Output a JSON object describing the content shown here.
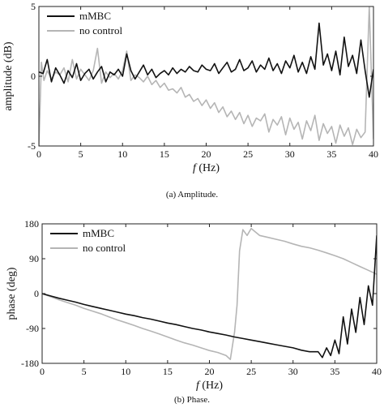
{
  "chart_data": [
    {
      "type": "line",
      "caption": "(a) Amplitude.",
      "xlabel_var": "f",
      "xlabel_unit": "(Hz)",
      "ylabel": "amplitude (dB)",
      "xlim": [
        0,
        40
      ],
      "ylim": [
        -5,
        5
      ],
      "xticks": [
        0,
        5,
        10,
        15,
        20,
        25,
        30,
        35,
        40
      ],
      "yticks": [
        -5,
        0,
        5
      ],
      "grid": false,
      "legend": "top-left",
      "series": [
        {
          "name": "mMBC",
          "color": "#111111",
          "x": [
            0,
            0.5,
            1,
            1.5,
            2,
            2.5,
            3,
            3.5,
            4,
            4.5,
            5,
            5.5,
            6,
            6.5,
            7,
            7.5,
            8,
            8.5,
            9,
            9.5,
            10,
            10.5,
            11,
            11.5,
            12,
            12.5,
            13,
            13.5,
            14,
            14.5,
            15,
            15.5,
            16,
            16.5,
            17,
            17.5,
            18,
            18.5,
            19,
            19.5,
            20,
            20.5,
            21,
            21.5,
            22,
            22.5,
            23,
            23.5,
            24,
            24.5,
            25,
            25.5,
            26,
            26.5,
            27,
            27.5,
            28,
            28.5,
            29,
            29.5,
            30,
            30.5,
            31,
            31.5,
            32,
            32.5,
            33,
            33.5,
            34,
            34.5,
            35,
            35.5,
            36,
            36.5,
            37,
            37.5,
            38,
            38.5,
            39,
            39.5,
            40
          ],
          "y": [
            0.3,
            0.2,
            1.2,
            -0.4,
            0.6,
            0.1,
            -0.5,
            0.4,
            -0.1,
            0.9,
            -0.3,
            0.2,
            0.5,
            -0.2,
            0.3,
            0.7,
            -0.4,
            0.3,
            0.1,
            0.5,
            0.0,
            1.6,
            0.4,
            -0.2,
            0.3,
            0.8,
            0.1,
            0.5,
            -0.1,
            0.2,
            0.4,
            0.1,
            0.6,
            0.2,
            0.5,
            0.3,
            0.7,
            0.4,
            0.3,
            0.8,
            0.5,
            0.4,
            0.9,
            0.2,
            0.6,
            1.0,
            0.3,
            0.5,
            1.2,
            0.4,
            0.6,
            1.1,
            0.3,
            0.8,
            0.5,
            1.3,
            0.4,
            0.9,
            0.2,
            1.1,
            0.6,
            1.5,
            0.3,
            1.0,
            0.2,
            1.4,
            0.5,
            3.8,
            0.8,
            1.6,
            0.4,
            1.8,
            0.1,
            2.8,
            0.7,
            1.5,
            0.2,
            2.6,
            0.4,
            -1.5,
            0.5
          ]
        },
        {
          "name": "no control",
          "color": "#b5b5b5",
          "x": [
            0,
            0.3,
            0.6,
            1,
            1.5,
            2,
            2.5,
            3,
            3.5,
            4,
            4.5,
            5,
            5.5,
            6,
            6.5,
            7,
            7.5,
            8,
            8.5,
            9,
            9.5,
            10,
            10.5,
            11,
            11.5,
            12,
            12.5,
            13,
            13.5,
            14,
            14.5,
            15,
            15.5,
            16,
            16.5,
            17,
            17.5,
            18,
            18.5,
            19,
            19.5,
            20,
            20.5,
            21,
            21.5,
            22,
            22.5,
            23,
            23.5,
            24,
            24.5,
            25,
            25.5,
            26,
            26.5,
            27,
            27.5,
            28,
            28.5,
            29,
            29.5,
            30,
            30.5,
            31,
            31.5,
            32,
            32.5,
            33,
            33.5,
            34,
            34.5,
            35,
            35.5,
            36,
            36.5,
            37,
            37.5,
            38,
            38.5,
            39,
            39.5,
            40
          ],
          "y": [
            -5.0,
            1.0,
            -0.3,
            0.4,
            -0.2,
            0.3,
            0.1,
            0.6,
            -0.4,
            1.2,
            -0.2,
            0.5,
            0.1,
            -0.3,
            0.4,
            2.0,
            -0.5,
            0.3,
            -0.1,
            0.2,
            -0.2,
            0.4,
            1.8,
            -0.3,
            0.1,
            -0.1,
            -0.4,
            0.0,
            -0.6,
            -0.3,
            -0.8,
            -0.5,
            -1.0,
            -0.9,
            -1.2,
            -0.8,
            -1.5,
            -1.3,
            -1.8,
            -1.6,
            -2.1,
            -1.7,
            -2.3,
            -1.9,
            -2.6,
            -2.2,
            -2.9,
            -2.5,
            -3.1,
            -2.6,
            -3.4,
            -2.8,
            -3.6,
            -3.0,
            -3.2,
            -2.7,
            -4.0,
            -3.1,
            -3.5,
            -2.9,
            -4.2,
            -3.0,
            -3.8,
            -3.3,
            -4.5,
            -3.2,
            -3.9,
            -2.8,
            -4.6,
            -3.4,
            -4.1,
            -3.6,
            -4.8,
            -3.5,
            -4.3,
            -3.7,
            -4.9,
            -3.8,
            -4.4,
            -4.0,
            5.0,
            -4.5
          ]
        }
      ]
    },
    {
      "type": "line",
      "caption": "(b) Phase.",
      "xlabel_var": "f",
      "xlabel_unit": "(Hz)",
      "ylabel": "phase (deg)",
      "xlim": [
        0,
        40
      ],
      "ylim": [
        -180,
        180
      ],
      "xticks": [
        0,
        5,
        10,
        15,
        20,
        25,
        30,
        35,
        40
      ],
      "yticks": [
        -180,
        -90,
        0,
        90,
        180
      ],
      "grid": false,
      "legend": "top-left",
      "series": [
        {
          "name": "mMBC",
          "color": "#111111",
          "x": [
            0,
            1,
            2,
            3,
            4,
            5,
            6,
            7,
            8,
            9,
            10,
            11,
            12,
            13,
            14,
            15,
            16,
            17,
            18,
            19,
            20,
            21,
            22,
            23,
            24,
            25,
            26,
            27,
            28,
            29,
            30,
            31,
            32,
            33,
            33.5,
            34,
            34.5,
            35,
            35.5,
            36,
            36.5,
            37,
            37.5,
            38,
            38.5,
            39,
            39.5,
            40
          ],
          "y": [
            0,
            -6,
            -12,
            -17,
            -22,
            -28,
            -33,
            -38,
            -43,
            -48,
            -53,
            -57,
            -62,
            -66,
            -71,
            -76,
            -80,
            -85,
            -90,
            -94,
            -99,
            -103,
            -107,
            -112,
            -116,
            -120,
            -124,
            -128,
            -132,
            -136,
            -140,
            -146,
            -150,
            -150,
            -165,
            -140,
            -160,
            -120,
            -155,
            -60,
            -130,
            -40,
            -100,
            -10,
            -80,
            20,
            -30,
            150
          ]
        },
        {
          "name": "no control",
          "color": "#b5b5b5",
          "x": [
            0,
            1,
            2,
            3,
            4,
            5,
            6,
            7,
            8,
            9,
            10,
            11,
            12,
            13,
            14,
            15,
            16,
            17,
            18,
            19,
            20,
            21,
            22,
            22.5,
            23,
            23.3,
            23.6,
            24,
            24.5,
            25,
            26,
            27,
            28,
            29,
            30,
            31,
            32,
            33,
            34,
            35,
            36,
            37,
            38,
            39,
            40
          ],
          "y": [
            0,
            -8,
            -16,
            -23,
            -30,
            -38,
            -45,
            -52,
            -60,
            -68,
            -75,
            -82,
            -90,
            -97,
            -104,
            -112,
            -120,
            -127,
            -133,
            -140,
            -147,
            -152,
            -160,
            -170,
            -100,
            -30,
            110,
            165,
            150,
            168,
            150,
            145,
            140,
            135,
            128,
            122,
            118,
            112,
            105,
            98,
            90,
            80,
            70,
            60,
            50
          ]
        }
      ]
    }
  ]
}
